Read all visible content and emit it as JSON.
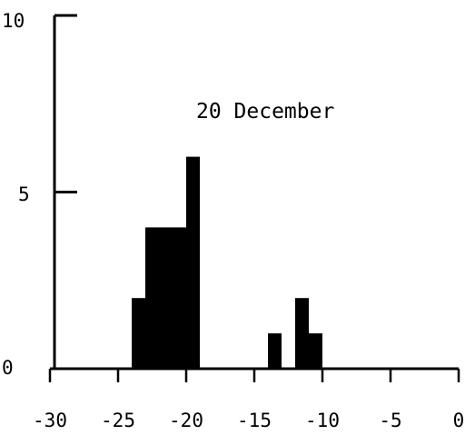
{
  "chart_data": {
    "type": "bar",
    "annotation": "20 December",
    "xlim": [
      -30,
      0
    ],
    "ylim": [
      0,
      10
    ],
    "x_ticks": [
      -30,
      -25,
      -20,
      -15,
      -10,
      -5,
      0
    ],
    "x_tick_labels": [
      "-30",
      "-25",
      "-20",
      "-15",
      "-10",
      "-5",
      "0"
    ],
    "y_ticks": [
      0,
      5,
      10
    ],
    "y_tick_labels": [
      "0",
      "5",
      "10"
    ],
    "bin_width": 1,
    "bars": [
      {
        "x0": -24,
        "x1": -23,
        "value": 2
      },
      {
        "x0": -23,
        "x1": -22,
        "value": 4
      },
      {
        "x0": -22,
        "x1": -21,
        "value": 4
      },
      {
        "x0": -21,
        "x1": -20,
        "value": 4
      },
      {
        "x0": -20,
        "x1": -19,
        "value": 6
      },
      {
        "x0": -14,
        "x1": -13,
        "value": 1
      },
      {
        "x0": -12,
        "x1": -11,
        "value": 2
      },
      {
        "x0": -11,
        "x1": -10,
        "value": 1
      }
    ],
    "grid": false,
    "bar_color": "#000000"
  }
}
